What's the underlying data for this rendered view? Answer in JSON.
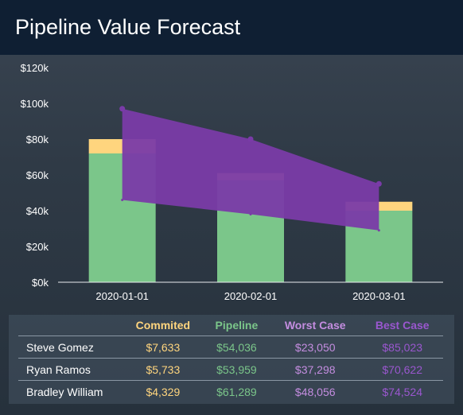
{
  "header": {
    "title": "Pipeline Value Forecast"
  },
  "chart_data": {
    "type": "bar",
    "categories": [
      "2020-01-01",
      "2020-02-01",
      "2020-03-01"
    ],
    "series": [
      {
        "name": "Pipeline",
        "values": [
          72000,
          57000,
          40000
        ],
        "color": "#7bc68a"
      },
      {
        "name": "Commited",
        "values": [
          8000,
          4000,
          5000
        ],
        "color": "#ffd57e"
      }
    ],
    "range": {
      "name": "Worst/Best Case",
      "high": [
        97000,
        80000,
        55000
      ],
      "low": [
        46000,
        38000,
        29000
      ],
      "color": "#7a3ba8"
    },
    "yticks": [
      "$0k",
      "$20k",
      "$40k",
      "$60k",
      "$80k",
      "$100k",
      "$120k"
    ],
    "ylim": [
      0,
      120000
    ],
    "stacked": true,
    "grid": false
  },
  "table": {
    "columns": [
      {
        "label": "",
        "color": "#ffffff"
      },
      {
        "label": "Commited",
        "color": "#ffd57e"
      },
      {
        "label": "Pipeline",
        "color": "#7bc68a"
      },
      {
        "label": "Worst Case",
        "color": "#c48de0"
      },
      {
        "label": "Best Case",
        "color": "#9a57cf"
      }
    ],
    "rows": [
      {
        "name": "Steve Gomez",
        "commited": "$7,633",
        "pipeline": "$54,036",
        "worst": "$23,050",
        "best": "$85,023"
      },
      {
        "name": "Ryan Ramos",
        "commited": "$5,733",
        "pipeline": "$53,959",
        "worst": "$37,298",
        "best": "$70,622"
      },
      {
        "name": "Bradley William",
        "commited": "$4,329",
        "pipeline": "$61,289",
        "worst": "$48,056",
        "best": "$74,524"
      }
    ]
  }
}
